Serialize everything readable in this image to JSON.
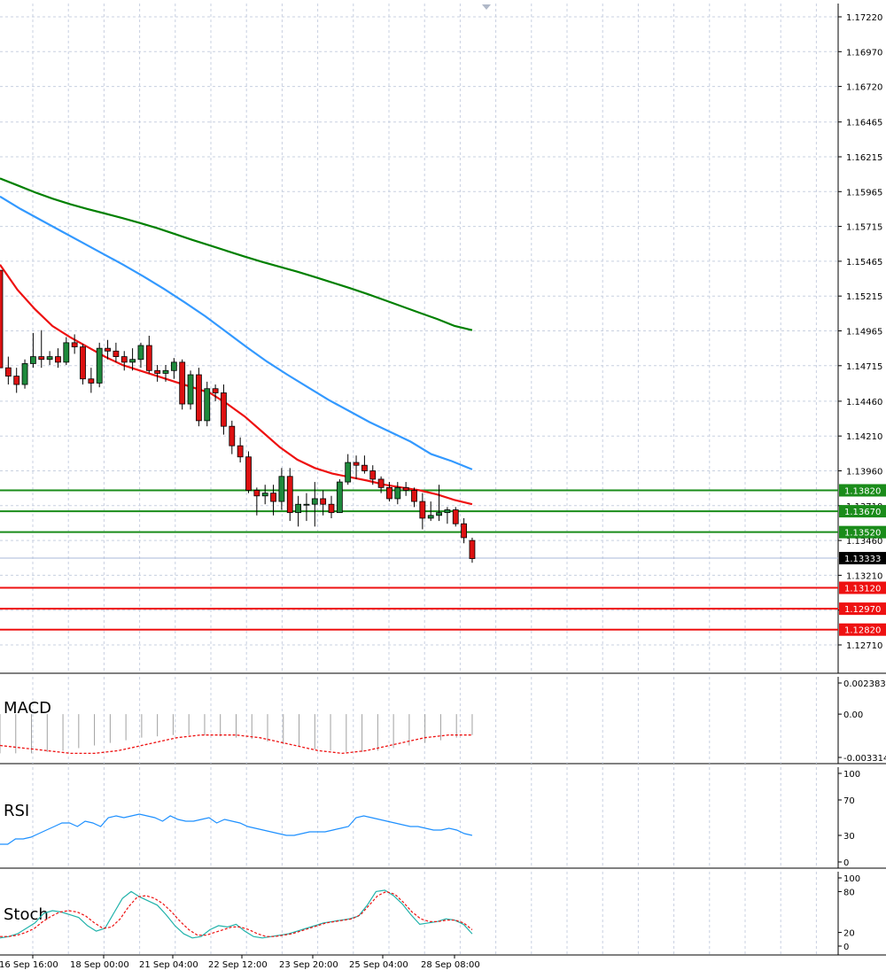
{
  "chart_data": {
    "type": "candlestick",
    "instrument_panel": {
      "price_ticks": [
        "1.17220",
        "1.16970",
        "1.16720",
        "1.16465",
        "1.16215",
        "1.15965",
        "1.15715",
        "1.15465",
        "1.15215",
        "1.14965",
        "1.14715",
        "1.14460",
        "1.14210",
        "1.13960",
        "1.13710",
        "1.13460",
        "1.13210",
        "1.12960",
        "1.12710"
      ],
      "ylim": [
        1.1271,
        1.1722
      ],
      "grid": true,
      "candles": [
        {
          "o": 1.154,
          "h": 1.154,
          "l": 1.147,
          "c": 1.147
        },
        {
          "o": 1.147,
          "h": 1.1478,
          "l": 1.1458,
          "c": 1.1464
        },
        {
          "o": 1.1464,
          "h": 1.147,
          "l": 1.1452,
          "c": 1.1458
        },
        {
          "o": 1.1458,
          "h": 1.1476,
          "l": 1.1455,
          "c": 1.1473
        },
        {
          "o": 1.1473,
          "h": 1.1495,
          "l": 1.147,
          "c": 1.1478
        },
        {
          "o": 1.1478,
          "h": 1.1497,
          "l": 1.147,
          "c": 1.1476
        },
        {
          "o": 1.1476,
          "h": 1.1482,
          "l": 1.1472,
          "c": 1.1478
        },
        {
          "o": 1.1478,
          "h": 1.1484,
          "l": 1.147,
          "c": 1.1474
        },
        {
          "o": 1.1474,
          "h": 1.1492,
          "l": 1.1472,
          "c": 1.1488
        },
        {
          "o": 1.1488,
          "h": 1.1494,
          "l": 1.148,
          "c": 1.1485
        },
        {
          "o": 1.1485,
          "h": 1.1487,
          "l": 1.1458,
          "c": 1.1462
        },
        {
          "o": 1.1462,
          "h": 1.147,
          "l": 1.1452,
          "c": 1.1459
        },
        {
          "o": 1.1459,
          "h": 1.1488,
          "l": 1.1456,
          "c": 1.1484
        },
        {
          "o": 1.1484,
          "h": 1.149,
          "l": 1.1476,
          "c": 1.1482
        },
        {
          "o": 1.1482,
          "h": 1.1488,
          "l": 1.1474,
          "c": 1.1478
        },
        {
          "o": 1.1478,
          "h": 1.1482,
          "l": 1.1468,
          "c": 1.1474
        },
        {
          "o": 1.1474,
          "h": 1.1484,
          "l": 1.1468,
          "c": 1.1476
        },
        {
          "o": 1.1476,
          "h": 1.1488,
          "l": 1.147,
          "c": 1.1486
        },
        {
          "o": 1.1486,
          "h": 1.1493,
          "l": 1.1466,
          "c": 1.1468
        },
        {
          "o": 1.1468,
          "h": 1.1472,
          "l": 1.146,
          "c": 1.1466
        },
        {
          "o": 1.1466,
          "h": 1.1472,
          "l": 1.146,
          "c": 1.1468
        },
        {
          "o": 1.1468,
          "h": 1.1477,
          "l": 1.1462,
          "c": 1.1474
        },
        {
          "o": 1.1474,
          "h": 1.1476,
          "l": 1.144,
          "c": 1.1444
        },
        {
          "o": 1.1444,
          "h": 1.1468,
          "l": 1.144,
          "c": 1.1465
        },
        {
          "o": 1.1465,
          "h": 1.147,
          "l": 1.1428,
          "c": 1.1432
        },
        {
          "o": 1.1432,
          "h": 1.146,
          "l": 1.1428,
          "c": 1.1455
        },
        {
          "o": 1.1455,
          "h": 1.1458,
          "l": 1.1446,
          "c": 1.1452
        },
        {
          "o": 1.1452,
          "h": 1.1458,
          "l": 1.1422,
          "c": 1.1428
        },
        {
          "o": 1.1428,
          "h": 1.1432,
          "l": 1.1408,
          "c": 1.1414
        },
        {
          "o": 1.1414,
          "h": 1.142,
          "l": 1.1402,
          "c": 1.1406
        },
        {
          "o": 1.1406,
          "h": 1.141,
          "l": 1.138,
          "c": 1.1382
        },
        {
          "o": 1.1382,
          "h": 1.1384,
          "l": 1.1364,
          "c": 1.1378
        },
        {
          "o": 1.1378,
          "h": 1.1386,
          "l": 1.1372,
          "c": 1.138
        },
        {
          "o": 1.138,
          "h": 1.1386,
          "l": 1.1364,
          "c": 1.1374
        },
        {
          "o": 1.1374,
          "h": 1.1398,
          "l": 1.1368,
          "c": 1.1392
        },
        {
          "o": 1.1392,
          "h": 1.1398,
          "l": 1.136,
          "c": 1.1366
        },
        {
          "o": 1.1366,
          "h": 1.1378,
          "l": 1.1356,
          "c": 1.1372
        },
        {
          "o": 1.1372,
          "h": 1.138,
          "l": 1.136,
          "c": 1.1372
        },
        {
          "o": 1.1372,
          "h": 1.1388,
          "l": 1.1356,
          "c": 1.1376
        },
        {
          "o": 1.1376,
          "h": 1.1382,
          "l": 1.1364,
          "c": 1.1372
        },
        {
          "o": 1.1372,
          "h": 1.1378,
          "l": 1.1362,
          "c": 1.1366
        },
        {
          "o": 1.1366,
          "h": 1.139,
          "l": 1.1366,
          "c": 1.1388
        },
        {
          "o": 1.1388,
          "h": 1.1408,
          "l": 1.1386,
          "c": 1.1402
        },
        {
          "o": 1.1402,
          "h": 1.1407,
          "l": 1.139,
          "c": 1.14
        },
        {
          "o": 1.14,
          "h": 1.1407,
          "l": 1.1394,
          "c": 1.1396
        },
        {
          "o": 1.1396,
          "h": 1.14,
          "l": 1.1386,
          "c": 1.139
        },
        {
          "o": 1.139,
          "h": 1.1392,
          "l": 1.138,
          "c": 1.1384
        },
        {
          "o": 1.1384,
          "h": 1.1388,
          "l": 1.1374,
          "c": 1.1376
        },
        {
          "o": 1.1376,
          "h": 1.1388,
          "l": 1.1372,
          "c": 1.1384
        },
        {
          "o": 1.1384,
          "h": 1.1388,
          "l": 1.1378,
          "c": 1.1382
        },
        {
          "o": 1.1382,
          "h": 1.1384,
          "l": 1.137,
          "c": 1.1374
        },
        {
          "o": 1.1374,
          "h": 1.138,
          "l": 1.1354,
          "c": 1.1362
        },
        {
          "o": 1.1362,
          "h": 1.1374,
          "l": 1.136,
          "c": 1.1364
        },
        {
          "o": 1.1364,
          "h": 1.1386,
          "l": 1.136,
          "c": 1.1366
        },
        {
          "o": 1.1366,
          "h": 1.137,
          "l": 1.1358,
          "c": 1.1368
        },
        {
          "o": 1.1368,
          "h": 1.137,
          "l": 1.1356,
          "c": 1.1358
        },
        {
          "o": 1.1358,
          "h": 1.1362,
          "l": 1.1344,
          "c": 1.1348
        },
        {
          "o": 1.1346,
          "h": 1.1348,
          "l": 1.133,
          "c": 1.1333
        }
      ],
      "moving_averages": [
        {
          "color": "#008000",
          "values": [
            1.1606,
            1.1601,
            1.1596,
            1.15915,
            1.15875,
            1.1584,
            1.15808,
            1.15775,
            1.1574,
            1.15702,
            1.1566,
            1.15618,
            1.15578,
            1.15538,
            1.15498,
            1.1546,
            1.15425,
            1.1539,
            1.15352,
            1.15312,
            1.15272,
            1.1523,
            1.15185,
            1.1514,
            1.15095,
            1.1505,
            1.15,
            1.1497
          ]
        },
        {
          "color": "#3399ff",
          "values": [
            1.1593,
            1.1584,
            1.1576,
            1.1568,
            1.156,
            1.1552,
            1.1544,
            1.15355,
            1.15265,
            1.1517,
            1.1507,
            1.1496,
            1.1485,
            1.14745,
            1.1465,
            1.1456,
            1.1447,
            1.1439,
            1.1431,
            1.1424,
            1.1417,
            1.1408,
            1.1403,
            1.1397
          ]
        },
        {
          "color": "#ee1111",
          "values": [
            1.1544,
            1.1526,
            1.1512,
            1.15,
            1.1492,
            1.1485,
            1.1478,
            1.1472,
            1.1468,
            1.1464,
            1.146,
            1.1456,
            1.1452,
            1.1444,
            1.1435,
            1.1424,
            1.1413,
            1.1404,
            1.1398,
            1.1394,
            1.13915,
            1.1389,
            1.1386,
            1.1384,
            1.1382,
            1.1379,
            1.1375,
            1.1372
          ]
        }
      ],
      "horizontal_levels": [
        {
          "value": 1.1382,
          "label": "1.13820",
          "color": "#1a8c1a"
        },
        {
          "value": 1.1367,
          "label": "1.13670",
          "color": "#1a8c1a"
        },
        {
          "value": 1.1352,
          "label": "1.13520",
          "color": "#1a8c1a"
        },
        {
          "value": 1.1312,
          "label": "1.13120",
          "color": "#ee1111"
        },
        {
          "value": 1.1297,
          "label": "1.12970",
          "color": "#ee1111"
        },
        {
          "value": 1.1282,
          "label": "1.12820",
          "color": "#ee1111"
        }
      ],
      "current_price": {
        "value": 1.13333,
        "label": "1.13333"
      },
      "bull_color": "#1e8a3c",
      "bear_color": "#dd1111"
    },
    "macd_panel": {
      "label": "MACD",
      "ticks": [
        "0.002383",
        "0.00",
        "-0.003314"
      ],
      "ylim": [
        -0.003314,
        0.002383
      ],
      "histogram": [
        -0.003,
        -0.003,
        -0.003,
        -0.0029,
        -0.0028,
        -0.0026,
        -0.0024,
        -0.0022,
        -0.002,
        -0.0018,
        -0.0017,
        -0.0016,
        -0.0016,
        -0.0016,
        -0.0017,
        -0.0018,
        -0.0019,
        -0.0021,
        -0.0023,
        -0.0025,
        -0.0027,
        -0.0028,
        -0.0029,
        -0.0029,
        -0.0028,
        -0.0026,
        -0.0024,
        -0.0022,
        -0.002,
        -0.0018,
        -0.0016
      ],
      "signal": [
        -0.0024,
        -0.0025,
        -0.0026,
        -0.0027,
        -0.0028,
        -0.0029,
        -0.003,
        -0.003,
        -0.003,
        -0.0029,
        -0.0028,
        -0.0026,
        -0.0024,
        -0.0022,
        -0.002,
        -0.0018,
        -0.0017,
        -0.0016,
        -0.0016,
        -0.0016,
        -0.0016,
        -0.0017,
        -0.0018,
        -0.002,
        -0.0022,
        -0.0024,
        -0.0026,
        -0.0028,
        -0.0029,
        -0.003,
        -0.0029,
        -0.0028,
        -0.0026,
        -0.0024,
        -0.0022,
        -0.002,
        -0.0018,
        -0.0017,
        -0.0016,
        -0.0016,
        -0.0016
      ]
    },
    "rsi_panel": {
      "label": "RSI",
      "ticks": [
        "100",
        "70",
        "30",
        "0"
      ],
      "ylim": [
        0,
        100
      ],
      "values": [
        20,
        20,
        26,
        26,
        28,
        32,
        36,
        40,
        44,
        44,
        40,
        46,
        44,
        40,
        50,
        52,
        50,
        52,
        54,
        52,
        50,
        46,
        52,
        48,
        46,
        46,
        48,
        50,
        44,
        48,
        46,
        44,
        40,
        38,
        36,
        34,
        32,
        30,
        30,
        32,
        34,
        34,
        34,
        36,
        38,
        40,
        50,
        52,
        50,
        48,
        46,
        44,
        42,
        40,
        40,
        38,
        36,
        36,
        38,
        36,
        32,
        30
      ]
    },
    "stoch_panel": {
      "label": "Stoch",
      "ticks": [
        "100",
        "80",
        "20",
        "0"
      ],
      "ylim": [
        0,
        100
      ],
      "main": [
        12,
        14,
        18,
        26,
        34,
        48,
        52,
        50,
        46,
        42,
        30,
        22,
        26,
        48,
        70,
        80,
        72,
        66,
        60,
        46,
        30,
        18,
        12,
        14,
        24,
        30,
        28,
        32,
        22,
        14,
        12,
        14,
        16,
        18,
        22,
        26,
        30,
        34,
        36,
        38,
        40,
        44,
        60,
        80,
        82,
        74,
        62,
        46,
        32,
        34,
        36,
        40,
        38,
        32,
        18
      ],
      "signal": [
        14,
        14,
        16,
        20,
        26,
        36,
        44,
        50,
        52,
        50,
        44,
        34,
        26,
        28,
        40,
        58,
        72,
        74,
        70,
        62,
        50,
        36,
        24,
        16,
        16,
        20,
        24,
        28,
        28,
        24,
        18,
        14,
        14,
        16,
        18,
        22,
        26,
        30,
        34,
        36,
        38,
        40,
        46,
        60,
        74,
        80,
        76,
        64,
        50,
        40,
        36,
        36,
        38,
        38,
        34,
        24
      ]
    },
    "x_ticks": [
      "16 Sep 16:00",
      "18 Sep 00:00",
      "21 Sep 04:00",
      "22 Sep 12:00",
      "23 Sep 20:00",
      "25 Sep 04:00",
      "28 Sep 08:00"
    ]
  }
}
